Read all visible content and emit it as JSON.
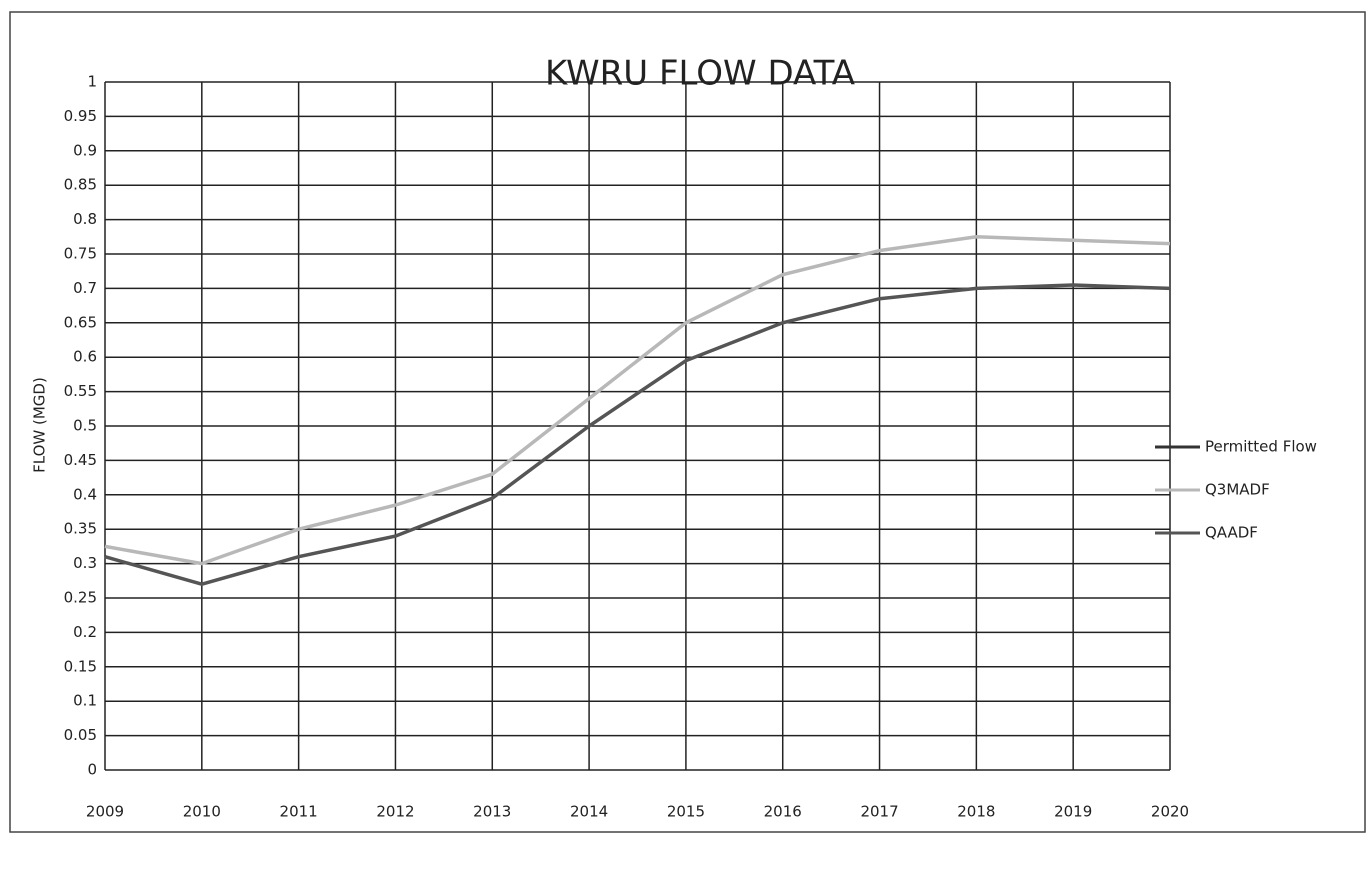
{
  "chart_data": {
    "type": "line",
    "title": "KWRU FLOW DATA",
    "y_label": "FLOW (MGD)",
    "x": [
      2009,
      2010,
      2011,
      2012,
      2013,
      2014,
      2015,
      2016,
      2017,
      2018,
      2019,
      2020
    ],
    "series": [
      {
        "name": "Permitted Flow",
        "color": "#333333",
        "values": [
          null,
          null,
          null,
          null,
          null,
          null,
          null,
          null,
          null,
          null,
          null,
          null
        ]
      },
      {
        "name": "Q3MADF",
        "color": "#b8b8b8",
        "values": [
          0.325,
          0.3,
          0.35,
          0.385,
          0.43,
          0.54,
          0.65,
          0.72,
          0.755,
          0.775,
          0.77,
          0.765
        ]
      },
      {
        "name": "QAADF",
        "color": "#555555",
        "values": [
          0.31,
          0.27,
          0.31,
          0.34,
          0.395,
          0.5,
          0.595,
          0.65,
          0.685,
          0.7,
          0.705,
          0.7
        ]
      }
    ],
    "xlim": [
      2009,
      2020
    ],
    "xticks": [
      2009,
      2010,
      2011,
      2012,
      2013,
      2014,
      2015,
      2016,
      2017,
      2018,
      2019,
      2020
    ],
    "ylim": [
      0,
      1
    ],
    "yticks": [
      0,
      0.05,
      0.1,
      0.15,
      0.2,
      0.25,
      0.3,
      0.35,
      0.4,
      0.45,
      0.5,
      0.55,
      0.6,
      0.65,
      0.7,
      0.75,
      0.8,
      0.85,
      0.9,
      0.95,
      1
    ],
    "grid": true,
    "legend": "right"
  }
}
